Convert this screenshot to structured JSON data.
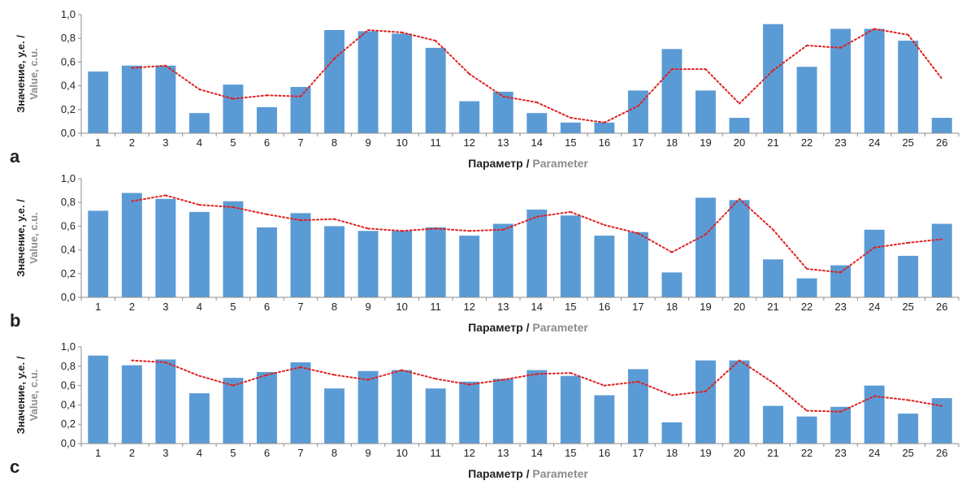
{
  "colors": {
    "bar": "#5b9bd5",
    "trend": "#e02020",
    "axis": "#8c8c8c",
    "label_dark": "#222222",
    "label_gray": "#8c8c8c"
  },
  "chart_data": [
    {
      "panel": "a",
      "type": "bar",
      "trend_type": "dotted line (2-point moving average)",
      "categories": [
        "1",
        "2",
        "3",
        "4",
        "5",
        "6",
        "7",
        "8",
        "9",
        "10",
        "11",
        "12",
        "13",
        "14",
        "15",
        "16",
        "17",
        "18",
        "19",
        "20",
        "21",
        "22",
        "23",
        "24",
        "25",
        "26"
      ],
      "values": [
        0.52,
        0.57,
        0.57,
        0.17,
        0.41,
        0.22,
        0.39,
        0.87,
        0.86,
        0.84,
        0.72,
        0.27,
        0.35,
        0.17,
        0.09,
        0.09,
        0.36,
        0.71,
        0.36,
        0.13,
        0.92,
        0.56,
        0.88,
        0.88,
        0.78,
        0.13
      ],
      "trend": [
        null,
        0.55,
        0.57,
        0.37,
        0.29,
        0.32,
        0.31,
        0.63,
        0.87,
        0.85,
        0.78,
        0.5,
        0.31,
        0.26,
        0.13,
        0.09,
        0.23,
        0.54,
        0.54,
        0.25,
        0.53,
        0.74,
        0.72,
        0.88,
        0.83,
        0.46
      ],
      "ylim": [
        0,
        1.0
      ],
      "yticks": [
        "0,0",
        "0,2",
        "0,4",
        "0,6",
        "0,8",
        "1,0"
      ],
      "ylabel_line1": "Значение, у.е. /",
      "ylabel_line2": "Value, c.u.",
      "xlabel_ru": "Параметр",
      "xlabel_sep": " / ",
      "xlabel_en": "Parameter"
    },
    {
      "panel": "b",
      "type": "bar",
      "trend_type": "dotted line (2-point moving average)",
      "categories": [
        "1",
        "2",
        "3",
        "4",
        "5",
        "6",
        "7",
        "8",
        "9",
        "10",
        "11",
        "12",
        "13",
        "14",
        "15",
        "16",
        "17",
        "18",
        "19",
        "20",
        "21",
        "22",
        "23",
        "24",
        "25",
        "26"
      ],
      "values": [
        0.73,
        0.88,
        0.83,
        0.72,
        0.81,
        0.59,
        0.71,
        0.6,
        0.56,
        0.56,
        0.59,
        0.52,
        0.62,
        0.74,
        0.69,
        0.52,
        0.55,
        0.21,
        0.84,
        0.82,
        0.32,
        0.16,
        0.27,
        0.57,
        0.35,
        0.62
      ],
      "trend": [
        null,
        0.81,
        0.86,
        0.78,
        0.76,
        0.7,
        0.65,
        0.66,
        0.58,
        0.56,
        0.58,
        0.56,
        0.57,
        0.68,
        0.72,
        0.61,
        0.54,
        0.38,
        0.53,
        0.83,
        0.57,
        0.24,
        0.21,
        0.42,
        0.46,
        0.49
      ],
      "ylim": [
        0,
        1.0
      ],
      "yticks": [
        "0,0",
        "0,2",
        "0,4",
        "0,6",
        "0,8",
        "1,0"
      ],
      "ylabel_line1": "Значение, у.е. /",
      "ylabel_line2": "Value, c.u.",
      "xlabel_ru": "Параметр",
      "xlabel_sep": " / ",
      "xlabel_en": "Parameter"
    },
    {
      "panel": "c",
      "type": "bar",
      "trend_type": "dotted line (2-point moving average)",
      "categories": [
        "1",
        "2",
        "3",
        "4",
        "5",
        "6",
        "7",
        "8",
        "9",
        "10",
        "11",
        "12",
        "13",
        "14",
        "15",
        "16",
        "17",
        "18",
        "19",
        "20",
        "21",
        "22",
        "23",
        "24",
        "25",
        "26"
      ],
      "values": [
        0.91,
        0.81,
        0.87,
        0.52,
        0.68,
        0.74,
        0.84,
        0.57,
        0.75,
        0.76,
        0.57,
        0.64,
        0.67,
        0.76,
        0.7,
        0.5,
        0.77,
        0.22,
        0.86,
        0.86,
        0.39,
        0.28,
        0.38,
        0.6,
        0.31,
        0.47
      ],
      "trend": [
        null,
        0.86,
        0.84,
        0.7,
        0.6,
        0.71,
        0.79,
        0.71,
        0.66,
        0.76,
        0.67,
        0.61,
        0.66,
        0.72,
        0.73,
        0.6,
        0.64,
        0.5,
        0.54,
        0.86,
        0.63,
        0.34,
        0.33,
        0.49,
        0.45,
        0.39
      ],
      "ylim": [
        0,
        1.0
      ],
      "yticks": [
        "0,0",
        "0,2",
        "0,4",
        "0,6",
        "0,8",
        "1,0"
      ],
      "ylabel_line1": "Значение, у.е. /",
      "ylabel_line2": "Value, c.u.",
      "xlabel_ru": "Параметр",
      "xlabel_sep": " / ",
      "xlabel_en": "Parameter"
    }
  ]
}
